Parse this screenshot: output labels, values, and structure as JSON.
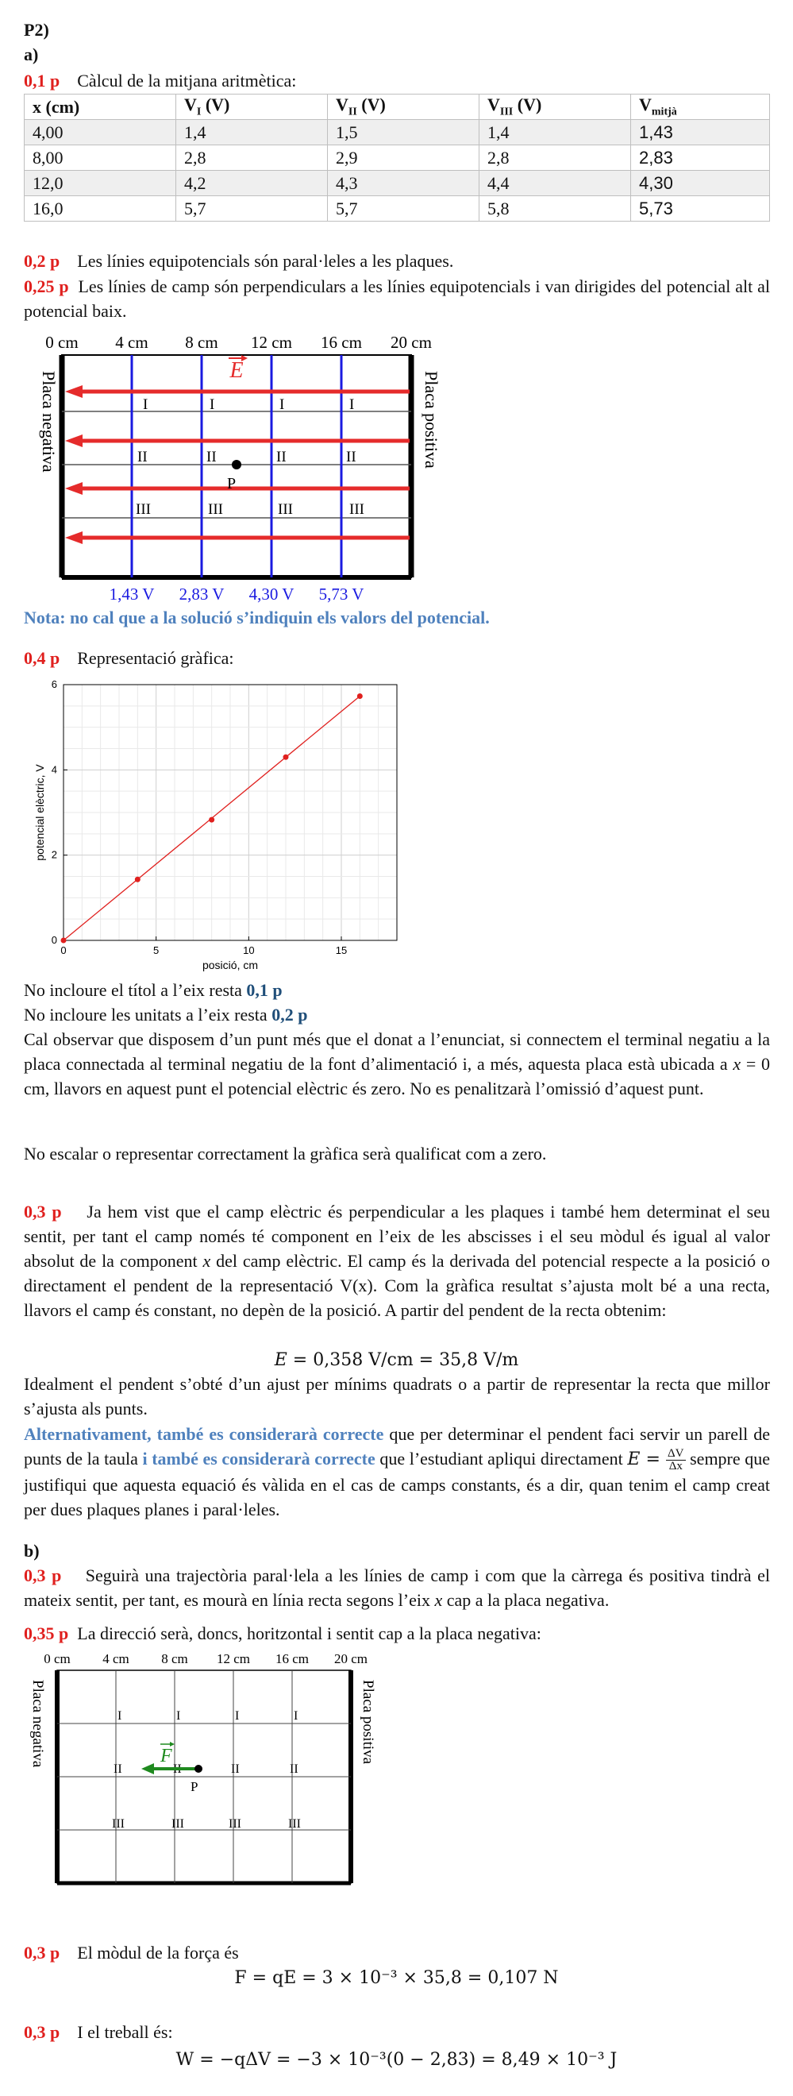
{
  "heading": "P2)",
  "part_a": "a)",
  "s1": {
    "pts": "0,1 p",
    "text": "Càlcul de la mitjana aritmètica:"
  },
  "table": {
    "headers": [
      "x (cm)",
      "V",
      "V",
      "V",
      "V"
    ],
    "header_subs": [
      "",
      "I",
      "II",
      "III",
      "mitjà"
    ],
    "header_units": [
      "",
      " (V)",
      " (V)",
      " (V)",
      ""
    ],
    "rows": [
      [
        "4,00",
        "1,4",
        "1,5",
        "1,4",
        "1,43"
      ],
      [
        "8,00",
        "2,8",
        "2,9",
        "2,8",
        "2,83"
      ],
      [
        "12,0",
        "4,2",
        "4,3",
        "4,4",
        "4,30"
      ],
      [
        "16,0",
        "5,7",
        "5,7",
        "5,8",
        "5,73"
      ]
    ]
  },
  "s2": {
    "pts": "0,2 p",
    "text": "Les línies equipotencials són paral·leles a les plaques."
  },
  "s3": {
    "pts": "0,25 p",
    "text": "Les línies de camp són perpendiculars a les línies equipotencials i van dirigides del potencial alt al potencial baix."
  },
  "fig1": {
    "scale": [
      "0 cm",
      "4 cm",
      "8 cm",
      "12 cm",
      "16 cm",
      "20 cm"
    ],
    "left_plate": "Placa negativa",
    "right_plate": "Placa positiva",
    "field_label": "E",
    "rows": [
      "I",
      "II",
      "III"
    ],
    "point": "P",
    "potentials": [
      "1,43 V",
      "2,83 V",
      "4,30 V",
      "5,73 V"
    ]
  },
  "note": "Nota: no cal que a la solució s’indiquin els valors del potencial.",
  "s4": {
    "pts": "0,4 p",
    "text": "Representació gràfica:"
  },
  "chart_data": {
    "type": "scatter",
    "x": [
      0,
      4,
      8,
      12,
      16
    ],
    "y": [
      0,
      1.43,
      2.83,
      4.3,
      5.73
    ],
    "xlabel": "posició, cm",
    "ylabel": "potencial elèctric, V",
    "xlim": [
      0,
      18
    ],
    "ylim": [
      0,
      6
    ],
    "xticks": [
      0,
      5,
      10,
      15
    ],
    "yticks": [
      0,
      2,
      4,
      6
    ],
    "grid": true,
    "color": "#e0201e",
    "fit_line": true
  },
  "penalty1": {
    "text": "No incloure el títol a l’eix resta ",
    "pts": "0,1 p"
  },
  "penalty2": {
    "text": "No incloure les unitats a l’eix resta ",
    "pts": "0,2 p"
  },
  "obs": {
    "pre": "Cal observar que disposem d’un punt més que el donat a l’enunciat, si connectem el terminal negatiu a la placa connectada al terminal negatiu de la font d’alimentació i, a més, aquesta placa està ubicada a ",
    "var": "x",
    "post": " = 0 cm, llavors en aquest punt el potencial elèctric és zero. No es penalitzarà l’omissió d’aquest punt."
  },
  "zero_rule": "No escalar o representar correctament la gràfica serà qualificat com a zero.",
  "s5": {
    "pts": "0,3 p",
    "pre": "Ja hem vist que el camp elèctric és perpendicular a les plaques i també hem determinat el seu sentit, per tant el camp només té component en l’eix de les abscisses i el seu mòdul és igual al valor absolut de la component ",
    "var": "x",
    "post": " del camp elèctric. El camp és la derivada del potencial respecte a la posició o directament el pendent de la representació V(x). Com la gràfica resultat s’ajusta molt bé a una recta, llavors el camp és constant, no depèn de la posició. A partir del pendent de la recta obtenim:"
  },
  "eq1": {
    "var": "E",
    "rest": " = 0,358 V/cm = 35,8 V/m"
  },
  "s5b": "Idealment el pendent s’obté d’un ajust per mínims quadrats o a partir de representar la recta que millor s’ajusta als punts.",
  "alt": {
    "b1": "Alternativament, també es considerarà correcte",
    "t1": " que per determinar el pendent faci servir un parell de punts de la taula ",
    "b2": "i també es considerarà correcte",
    "t2": " que l’estudiant apliqui directament ",
    "evar": "E",
    "eq": " = ",
    "num": "ΔV",
    "den": "Δx",
    "t3": " sempre que justifiqui que aquesta equació és vàlida en el cas de camps constants, és a dir, quan tenim el camp creat per dues plaques planes i paral·leles."
  },
  "part_b": "b)",
  "s6": {
    "pts": "0,3 p",
    "pre": "Seguirà una trajectòria paral·lela a les línies de camp i com que la càrrega és positiva tindrà el mateix sentit, per tant, es mourà en línia recta segons l’eix ",
    "var": "x",
    "post": " cap a la placa negativa."
  },
  "s7": {
    "pts": "0,35 p",
    "text": "La direcció serà, doncs, horitzontal i sentit cap a la placa negativa:"
  },
  "fig2": {
    "scale": [
      "0 cm",
      "4 cm",
      "8 cm",
      "12 cm",
      "16 cm",
      "20 cm"
    ],
    "left_plate": "Placa negativa",
    "right_plate": "Placa positiva",
    "force_label": "F",
    "rows": [
      "I",
      "II",
      "III"
    ],
    "point": "P"
  },
  "s8": {
    "pts": "0,3 p",
    "text": "El mòdul de la força és"
  },
  "eq2": "F = qE = 3 × 10⁻³ × 35,8 = 0,107 N",
  "s9": {
    "pts": "0,3 p",
    "text": "I el treball és:"
  },
  "eq3": "W = −qΔV = −3 × 10⁻³(0 − 2,83) = 8,49 × 10⁻³ J"
}
